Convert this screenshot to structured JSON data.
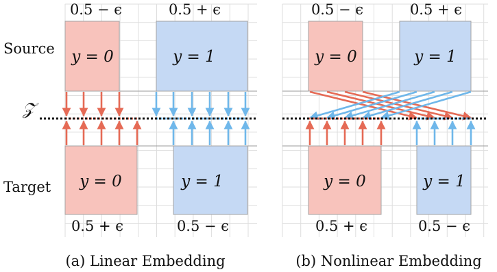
{
  "panels": [
    {
      "caption": "(a) Linear Embedding",
      "source_left": {
        "label": "y = 0",
        "proportion": "0.5 − ϵ"
      },
      "source_right": {
        "label": "y = 1",
        "proportion": "0.5 + ϵ"
      },
      "target_left": {
        "label": "y = 0",
        "proportion": "0.5 + ϵ"
      },
      "target_right": {
        "label": "y = 1",
        "proportion": "0.5 − ϵ"
      }
    },
    {
      "caption": "(b) Nonlinear Embedding",
      "source_left": {
        "label": "y = 0",
        "proportion": "0.5 − ϵ"
      },
      "source_right": {
        "label": "y = 1",
        "proportion": "0.5 + ϵ"
      },
      "target_left": {
        "label": "y = 0",
        "proportion": "0.5 + ϵ"
      },
      "target_right": {
        "label": "y = 1",
        "proportion": "0.5 − ϵ"
      }
    }
  ],
  "row_labels": {
    "source": "Source",
    "embedding": "𝒵",
    "target": "Target"
  },
  "colors": {
    "class0_fill": "#f8c3bc",
    "class1_fill": "#c5d9f4",
    "class0_arrow": "#e56a55",
    "class1_arrow": "#6fb7ea",
    "box_stroke": "#a3a3a3",
    "grid": "#dedede",
    "axis_line": "#9a9a9a",
    "embedding_line": "#111111"
  }
}
